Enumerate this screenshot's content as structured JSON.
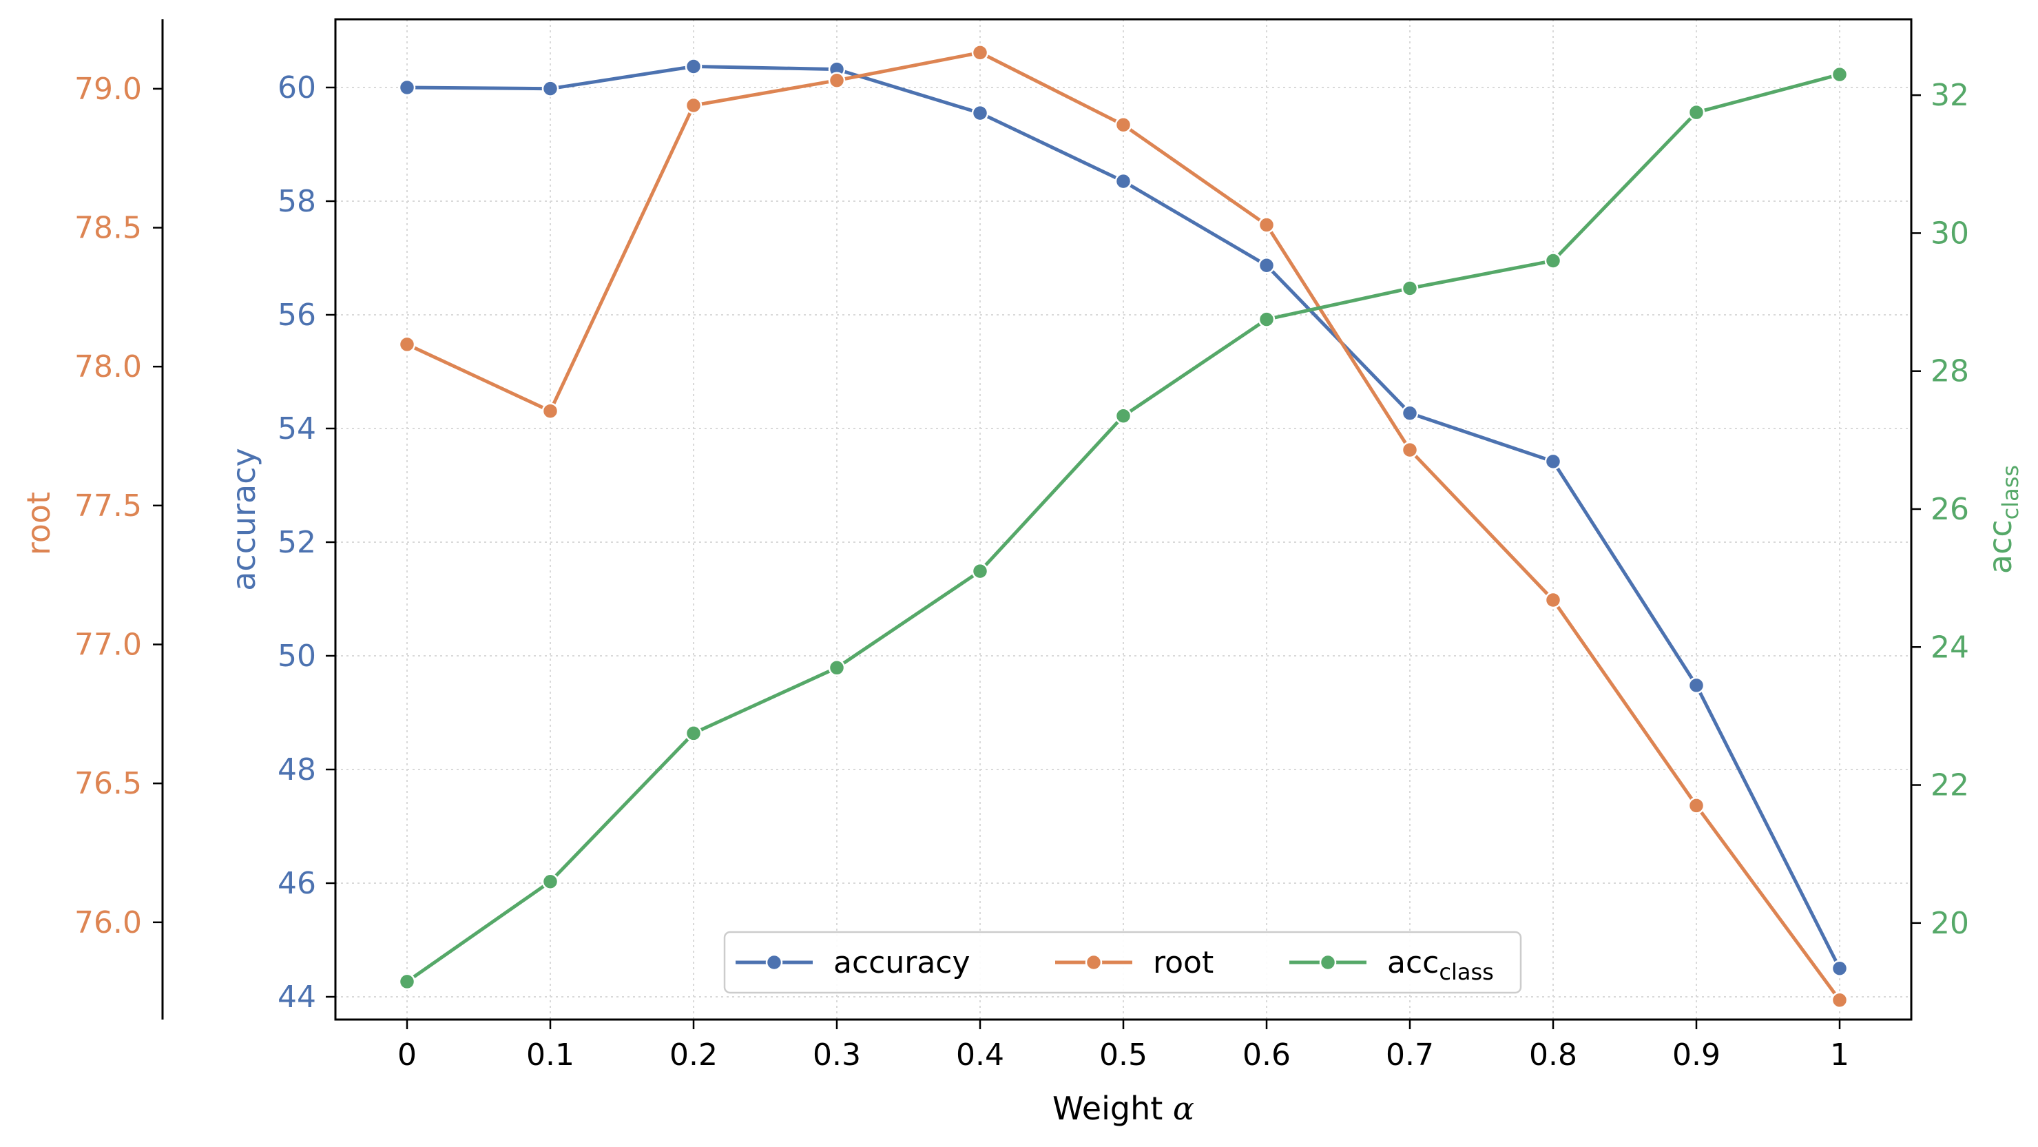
{
  "chart_data": {
    "type": "line",
    "xlabel": "Weight α",
    "x": [
      0,
      0.1,
      0.2,
      0.3,
      0.4,
      0.5,
      0.6,
      0.7,
      0.8,
      0.9,
      1
    ],
    "x_tick_labels": [
      "0",
      "0.1",
      "0.2",
      "0.3",
      "0.4",
      "0.5",
      "0.6",
      "0.7",
      "0.8",
      "0.9",
      "1"
    ],
    "grid": true,
    "legend_placement": "bottom-center",
    "axes": [
      {
        "id": "accuracy",
        "position": "left",
        "label": "accuracy",
        "color": "#4C72B0",
        "ylim": [
          43.6,
          61.2
        ],
        "ticks": [
          44,
          46,
          48,
          50,
          52,
          54,
          56,
          58,
          60
        ],
        "tick_labels": [
          "44",
          "46",
          "48",
          "50",
          "52",
          "54",
          "56",
          "58",
          "60"
        ]
      },
      {
        "id": "root",
        "position": "far-left",
        "label": "root",
        "color": "#DD8452",
        "ylim": [
          75.65,
          79.25
        ],
        "ticks": [
          76.0,
          76.5,
          77.0,
          77.5,
          78.0,
          78.5,
          79.0
        ],
        "tick_labels": [
          "76.0",
          "76.5",
          "77.0",
          "77.5",
          "78.0",
          "78.5",
          "79.0"
        ]
      },
      {
        "id": "acc_class",
        "position": "right",
        "label_base": "acc",
        "label_sub": "class",
        "color": "#55A868",
        "ylim": [
          18.6,
          33.1
        ],
        "ticks": [
          20,
          22,
          24,
          26,
          28,
          30,
          32
        ],
        "tick_labels": [
          "20",
          "22",
          "24",
          "26",
          "28",
          "30",
          "32"
        ]
      }
    ],
    "series": [
      {
        "name": "accuracy",
        "axis": "accuracy",
        "color": "#4C72B0",
        "values": [
          60.0,
          59.98,
          60.37,
          60.32,
          59.55,
          58.35,
          56.87,
          54.27,
          53.42,
          49.48,
          44.5
        ]
      },
      {
        "name": "root",
        "axis": "root",
        "color": "#DD8452",
        "values": [
          78.08,
          77.84,
          78.94,
          79.03,
          79.13,
          78.87,
          78.51,
          77.7,
          77.16,
          76.42,
          75.72
        ]
      },
      {
        "name": "acc_class",
        "name_base": "acc",
        "name_sub": "class",
        "axis": "acc_class",
        "color": "#55A868",
        "values": [
          19.15,
          20.6,
          22.75,
          23.7,
          25.1,
          27.35,
          28.75,
          29.2,
          29.6,
          31.75,
          32.3
        ]
      }
    ]
  }
}
